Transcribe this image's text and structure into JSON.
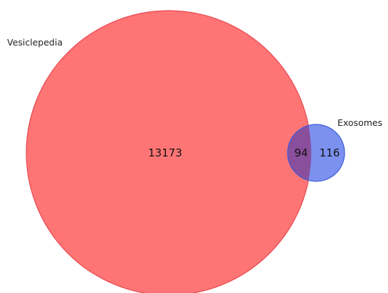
{
  "sets": {
    "left": {
      "name": "Vesiclepedia",
      "only_count": "13173",
      "color": "#ff6e6e"
    },
    "right": {
      "name": "Exosomes",
      "only_count": "116",
      "color": "#7188ee"
    }
  },
  "intersection": {
    "count": "94",
    "color": "#8a4f9c"
  }
}
